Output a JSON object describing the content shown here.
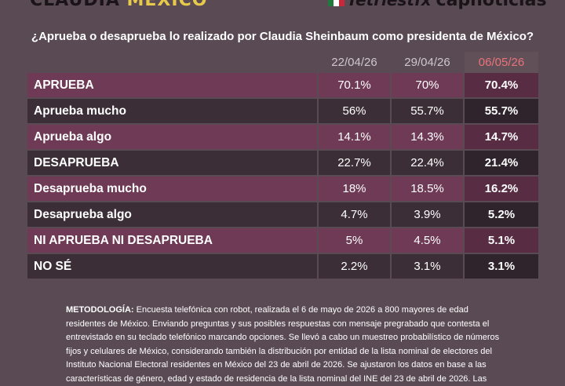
{
  "header": {
    "brand_left_a": "CLAUDIA ",
    "brand_left_b": "MÉXICO",
    "brand_right_a": "Tetriestfx",
    "brand_right_b": "capnoticias"
  },
  "colors": {
    "background": "#594a54",
    "row_highlight": "#6e3a55",
    "row_dark": "#3b2e37",
    "latest_header": "#e8737a",
    "brand_accent": "#e7c94b"
  },
  "chart_data": {
    "type": "table",
    "title": "¿Aprueba o desaprueba lo realizado por Claudia Sheinbaum como presidenta de México?",
    "columns": [
      "22/04/26",
      "29/04/26",
      "06/05/26"
    ],
    "rows": [
      {
        "label": "APRUEBA",
        "values": [
          "70.1%",
          "70%",
          "70.4%"
        ]
      },
      {
        "label": "Aprueba mucho",
        "values": [
          "56%",
          "55.7%",
          "55.7%"
        ]
      },
      {
        "label": "Aprueba algo",
        "values": [
          "14.1%",
          "14.3%",
          "14.7%"
        ]
      },
      {
        "label": "DESAPRUEBA",
        "values": [
          "22.7%",
          "22.4%",
          "21.4%"
        ]
      },
      {
        "label": "Desaprueba mucho",
        "values": [
          "18%",
          "18.5%",
          "16.2%"
        ]
      },
      {
        "label": "Desaprueba algo",
        "values": [
          "4.7%",
          "3.9%",
          "5.2%"
        ]
      },
      {
        "label": "NI APRUEBA NI DESAPRUEBA",
        "values": [
          "5%",
          "4.5%",
          "5.1%"
        ]
      },
      {
        "label": "NO SÉ",
        "values": [
          "2.2%",
          "3.1%",
          "3.1%"
        ]
      }
    ]
  },
  "methodology": {
    "label": "METODOLOGÍA:",
    "text": " Encuesta telefónica con robot, realizada el 6 de mayo de 2026 a 800 mayores de edad residentes de México. Enviando preguntas y sus posibles respuestas con mensaje pregrabado que contesta el entrevistado en su teclado telefónico marcando opciones. Se llevó a cabo un muestreo probabilístico de números fijos y celulares de México, considerando también la distribución por entidad de la lista nominal de electores del Instituto Nacional Electoral residentes en México del 23 de abril de 2026. Se ajustaron los datos en base a las características de género, edad y estado de residencia de la lista nominal del INE del 23 de abril de 2026. Las"
  }
}
